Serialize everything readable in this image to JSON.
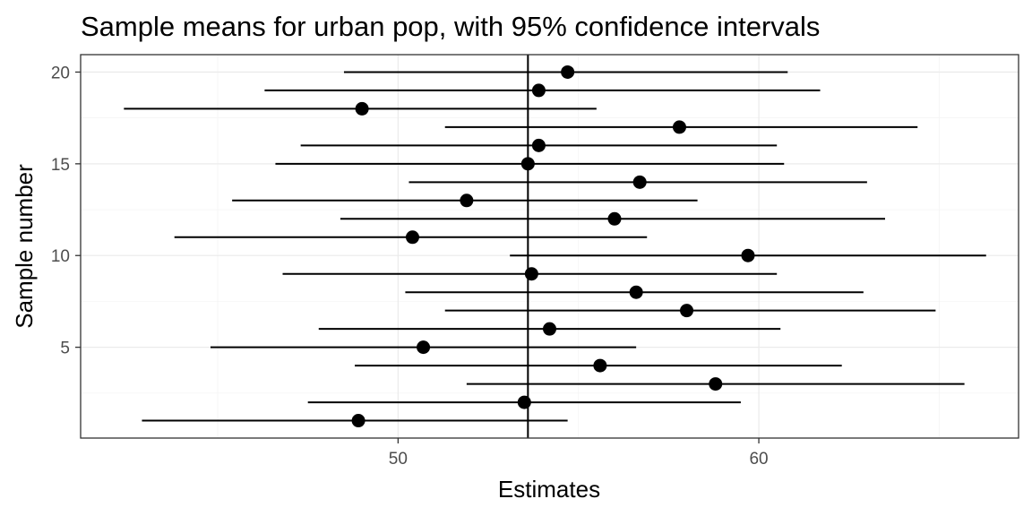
{
  "chart_data": {
    "type": "scatter",
    "title": "Sample means for urban pop, with 95% confidence intervals",
    "xlabel": "Estimates",
    "ylabel": "Sample number",
    "xlim": [
      41.2,
      67.2
    ],
    "ylim": [
      0.05,
      20.95
    ],
    "x_ticks": [
      50,
      60
    ],
    "y_ticks": [
      5,
      10,
      15,
      20
    ],
    "grid": true,
    "reference_line_x": 53.6,
    "series": [
      {
        "points": [
          {
            "sample": 1,
            "estimate": 48.9,
            "lower": 42.9,
            "upper": 54.7
          },
          {
            "sample": 2,
            "estimate": 53.5,
            "lower": 47.5,
            "upper": 59.5
          },
          {
            "sample": 3,
            "estimate": 58.8,
            "lower": 51.9,
            "upper": 65.7
          },
          {
            "sample": 4,
            "estimate": 55.6,
            "lower": 48.8,
            "upper": 62.3
          },
          {
            "sample": 5,
            "estimate": 50.7,
            "lower": 44.8,
            "upper": 56.6
          },
          {
            "sample": 6,
            "estimate": 54.2,
            "lower": 47.8,
            "upper": 60.6
          },
          {
            "sample": 7,
            "estimate": 58.0,
            "lower": 51.3,
            "upper": 64.9
          },
          {
            "sample": 8,
            "estimate": 56.6,
            "lower": 50.2,
            "upper": 62.9
          },
          {
            "sample": 9,
            "estimate": 53.7,
            "lower": 46.8,
            "upper": 60.5
          },
          {
            "sample": 10,
            "estimate": 59.7,
            "lower": 53.1,
            "upper": 66.3
          },
          {
            "sample": 11,
            "estimate": 50.4,
            "lower": 43.8,
            "upper": 56.9
          },
          {
            "sample": 12,
            "estimate": 56.0,
            "lower": 48.4,
            "upper": 63.5
          },
          {
            "sample": 13,
            "estimate": 51.9,
            "lower": 45.4,
            "upper": 58.3
          },
          {
            "sample": 14,
            "estimate": 56.7,
            "lower": 50.3,
            "upper": 63.0
          },
          {
            "sample": 15,
            "estimate": 53.6,
            "lower": 46.6,
            "upper": 60.7
          },
          {
            "sample": 16,
            "estimate": 53.9,
            "lower": 47.3,
            "upper": 60.5
          },
          {
            "sample": 17,
            "estimate": 57.8,
            "lower": 51.3,
            "upper": 64.4
          },
          {
            "sample": 18,
            "estimate": 49.0,
            "lower": 42.4,
            "upper": 55.5
          },
          {
            "sample": 19,
            "estimate": 53.9,
            "lower": 46.3,
            "upper": 61.7
          },
          {
            "sample": 20,
            "estimate": 54.7,
            "lower": 48.5,
            "upper": 60.8
          }
        ]
      }
    ]
  }
}
